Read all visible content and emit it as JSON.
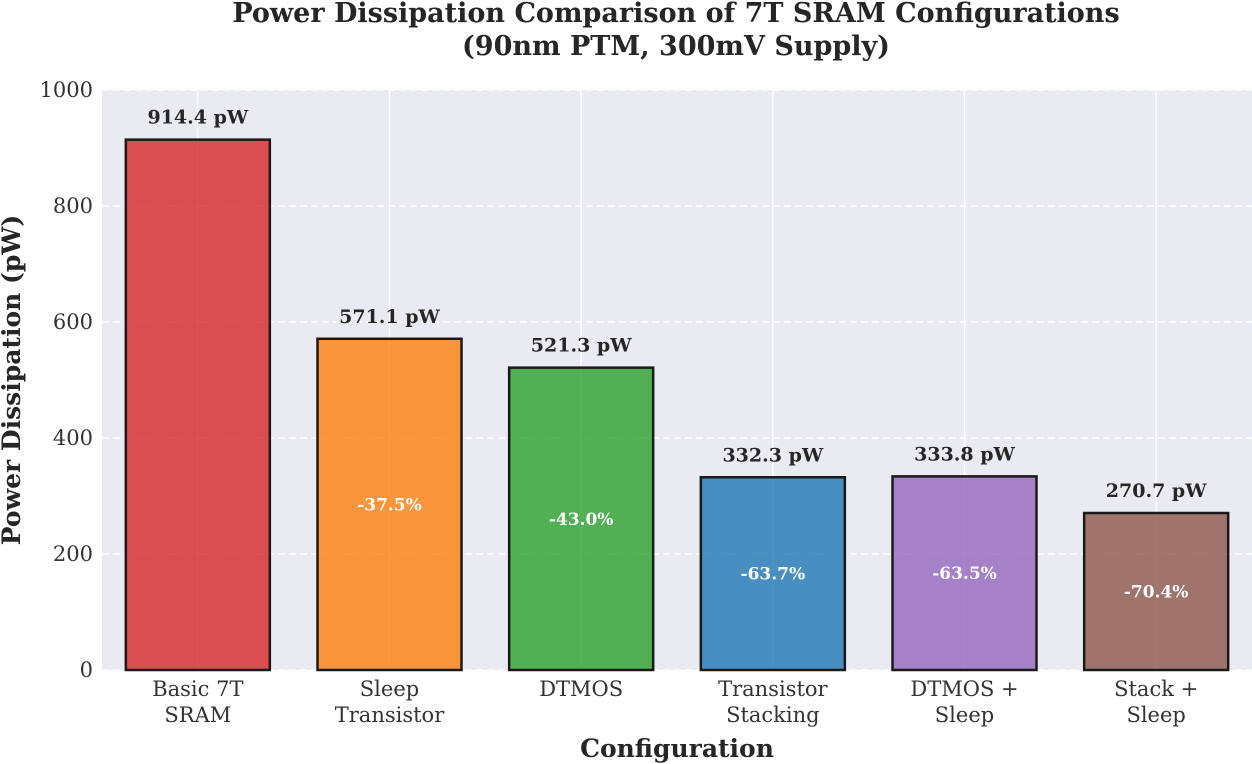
{
  "chart_data": {
    "type": "bar",
    "title_lines": [
      "Power Dissipation Comparison of 7T SRAM Configurations",
      "(90nm PTM, 300mV Supply)"
    ],
    "xlabel": "Configuration",
    "ylabel": "Power Dissipation (pW)",
    "ylim": [
      0,
      1000
    ],
    "yticks": [
      0,
      200,
      400,
      600,
      800,
      1000
    ],
    "grid": true,
    "categories": [
      [
        "Basic 7T",
        "SRAM"
      ],
      [
        "Sleep",
        "Transistor"
      ],
      [
        "DTMOS"
      ],
      [
        "Transistor",
        "Stacking"
      ],
      [
        "DTMOS +",
        "Sleep"
      ],
      [
        "Stack +",
        "Sleep"
      ]
    ],
    "values": [
      914.4,
      571.1,
      521.3,
      332.3,
      333.8,
      270.7
    ],
    "value_labels": [
      "914.4 pW",
      "571.1 pW",
      "521.3 pW",
      "332.3 pW",
      "333.8 pW",
      "270.7 pW"
    ],
    "reduction_labels": [
      "",
      "-37.5%",
      "-43.0%",
      "-63.7%",
      "-63.5%",
      "-70.4%"
    ],
    "colors": [
      "#d62728",
      "#ff7f0e",
      "#2ca02c",
      "#1f77b4",
      "#9467bd",
      "#8c564b"
    ]
  }
}
